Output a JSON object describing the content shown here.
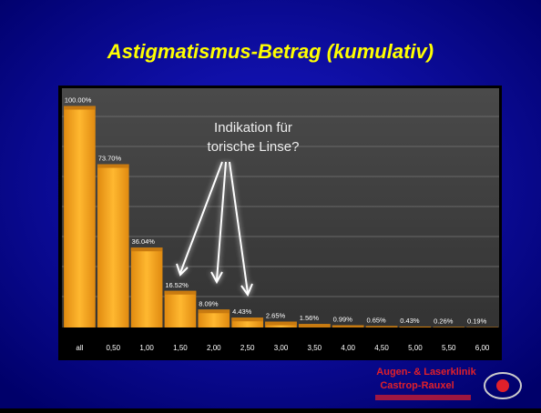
{
  "chart_data": {
    "type": "bar",
    "title": "Astigmatismus-Betrag (kumulativ)",
    "categories": [
      "all",
      "0,50",
      "1,00",
      "1,50",
      "2,00",
      "2,50",
      "3,00",
      "3,50",
      "4,00",
      "4,50",
      "5,00",
      "5,50",
      "6,00"
    ],
    "values": [
      100.0,
      73.7,
      36.04,
      16.52,
      8.09,
      4.43,
      2.65,
      1.56,
      0.99,
      0.65,
      0.43,
      0.26,
      0.19
    ],
    "value_labels": [
      "100.00%",
      "73.70%",
      "36.04%",
      "16.52%",
      "8.09%",
      "4.43%",
      "2.65%",
      "1.56%",
      "0.99%",
      "0.65%",
      "0.43%",
      "0.26%",
      "0.19%"
    ],
    "color": "#f5a31a",
    "ylim": [
      0,
      108
    ],
    "annotation": [
      "Indikation für",
      "torische Linse?"
    ],
    "logo": [
      "Augen- & Laserklinik",
      "Castrop-Rauxel"
    ]
  }
}
